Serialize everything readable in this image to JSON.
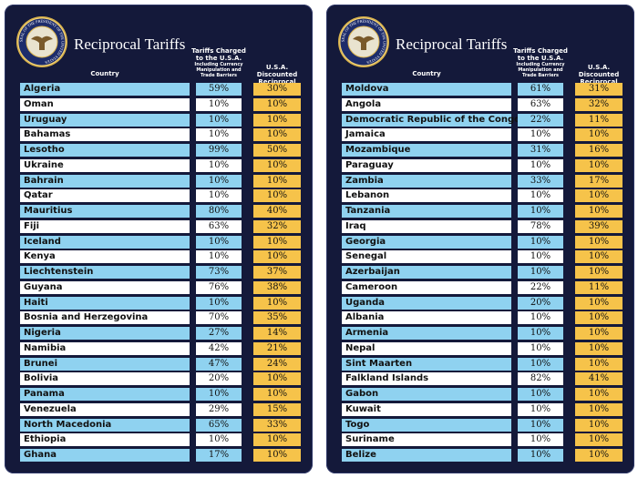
{
  "panels": [
    {
      "title": "Reciprocal Tariffs",
      "seal_text": "SEAL OF THE PRESIDENT OF THE UNITED STATES",
      "headers": {
        "country": "Country",
        "tariffs": "Tariffs Charged to the U.S.A.",
        "tariffs_note": "Including Currency Manipulation and Trade Barriers",
        "discounted": "U.S.A. Discounted Reciprocal Tariffs"
      },
      "rows": [
        [
          "Algeria",
          "59%",
          "30%"
        ],
        [
          "Oman",
          "10%",
          "10%"
        ],
        [
          "Uruguay",
          "10%",
          "10%"
        ],
        [
          "Bahamas",
          "10%",
          "10%"
        ],
        [
          "Lesotho",
          "99%",
          "50%"
        ],
        [
          "Ukraine",
          "10%",
          "10%"
        ],
        [
          "Bahrain",
          "10%",
          "10%"
        ],
        [
          "Qatar",
          "10%",
          "10%"
        ],
        [
          "Mauritius",
          "80%",
          "40%"
        ],
        [
          "Fiji",
          "63%",
          "32%"
        ],
        [
          "Iceland",
          "10%",
          "10%"
        ],
        [
          "Kenya",
          "10%",
          "10%"
        ],
        [
          "Liechtenstein",
          "73%",
          "37%"
        ],
        [
          "Guyana",
          "76%",
          "38%"
        ],
        [
          "Haiti",
          "10%",
          "10%"
        ],
        [
          "Bosnia and Herzegovina",
          "70%",
          "35%"
        ],
        [
          "Nigeria",
          "27%",
          "14%"
        ],
        [
          "Namibia",
          "42%",
          "21%"
        ],
        [
          "Brunei",
          "47%",
          "24%"
        ],
        [
          "Bolivia",
          "20%",
          "10%"
        ],
        [
          "Panama",
          "10%",
          "10%"
        ],
        [
          "Venezuela",
          "29%",
          "15%"
        ],
        [
          "North Macedonia",
          "65%",
          "33%"
        ],
        [
          "Ethiopia",
          "10%",
          "10%"
        ],
        [
          "Ghana",
          "17%",
          "10%"
        ]
      ]
    },
    {
      "title": "Reciprocal Tariffs",
      "seal_text": "SEAL OF THE PRESIDENT OF THE UNITED STATES",
      "headers": {
        "country": "Country",
        "tariffs": "Tariffs Charged to the U.S.A.",
        "tariffs_note": "Including Currency Manipulation and Trade Barriers",
        "discounted": "U.S.A. Discounted Reciprocal Tariffs"
      },
      "rows": [
        [
          "Moldova",
          "61%",
          "31%"
        ],
        [
          "Angola",
          "63%",
          "32%"
        ],
        [
          "Democratic Republic of the Congo",
          "22%",
          "11%"
        ],
        [
          "Jamaica",
          "10%",
          "10%"
        ],
        [
          "Mozambique",
          "31%",
          "16%"
        ],
        [
          "Paraguay",
          "10%",
          "10%"
        ],
        [
          "Zambia",
          "33%",
          "17%"
        ],
        [
          "Lebanon",
          "10%",
          "10%"
        ],
        [
          "Tanzania",
          "10%",
          "10%"
        ],
        [
          "Iraq",
          "78%",
          "39%"
        ],
        [
          "Georgia",
          "10%",
          "10%"
        ],
        [
          "Senegal",
          "10%",
          "10%"
        ],
        [
          "Azerbaijan",
          "10%",
          "10%"
        ],
        [
          "Cameroon",
          "22%",
          "11%"
        ],
        [
          "Uganda",
          "20%",
          "10%"
        ],
        [
          "Albania",
          "10%",
          "10%"
        ],
        [
          "Armenia",
          "10%",
          "10%"
        ],
        [
          "Nepal",
          "10%",
          "10%"
        ],
        [
          "Sint Maarten",
          "10%",
          "10%"
        ],
        [
          "Falkland Islands",
          "82%",
          "41%"
        ],
        [
          "Gabon",
          "10%",
          "10%"
        ],
        [
          "Kuwait",
          "10%",
          "10%"
        ],
        [
          "Togo",
          "10%",
          "10%"
        ],
        [
          "Suriname",
          "10%",
          "10%"
        ],
        [
          "Belize",
          "10%",
          "10%"
        ]
      ]
    }
  ]
}
